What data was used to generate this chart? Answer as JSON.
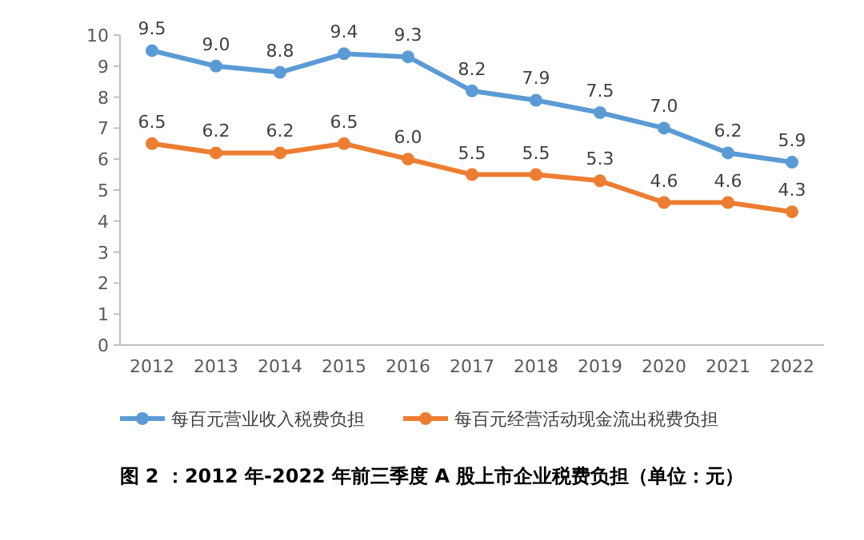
{
  "chart_data": {
    "type": "line",
    "title": "图 2 ：2012 年-2022 年前三季度 A 股上市企业税费负担（单位：元）",
    "categories": [
      "2012",
      "2013",
      "2014",
      "2015",
      "2016",
      "2017",
      "2018",
      "2019",
      "2020",
      "2021",
      "2022"
    ],
    "series": [
      {
        "name": "每百元营业收入税费负担",
        "color": "#5b9bd5",
        "values": [
          9.5,
          9.0,
          8.8,
          9.4,
          9.3,
          8.2,
          7.9,
          7.5,
          7.0,
          6.2,
          5.9
        ],
        "value_labels": [
          "9.5",
          "9.0",
          "8.8",
          "9.4",
          "9.3",
          "8.2",
          "7.9",
          "7.5",
          "7.0",
          "6.2",
          "5.9"
        ]
      },
      {
        "name": "每百元经营活动现金流出税费负担",
        "color": "#ed7d31",
        "values": [
          6.5,
          6.2,
          6.2,
          6.5,
          6.0,
          5.5,
          5.5,
          5.3,
          4.6,
          4.6,
          4.3
        ],
        "value_labels": [
          "6.5",
          "6.2",
          "6.2",
          "6.5",
          "6.0",
          "5.5",
          "5.5",
          "5.3",
          "4.6",
          "4.6",
          "4.3"
        ]
      }
    ],
    "ylim": [
      0,
      10
    ],
    "yticks": [
      0,
      1,
      2,
      3,
      4,
      5,
      6,
      7,
      8,
      9,
      10
    ],
    "legend": "bottom",
    "marker": "circle",
    "line_style": "solid"
  }
}
